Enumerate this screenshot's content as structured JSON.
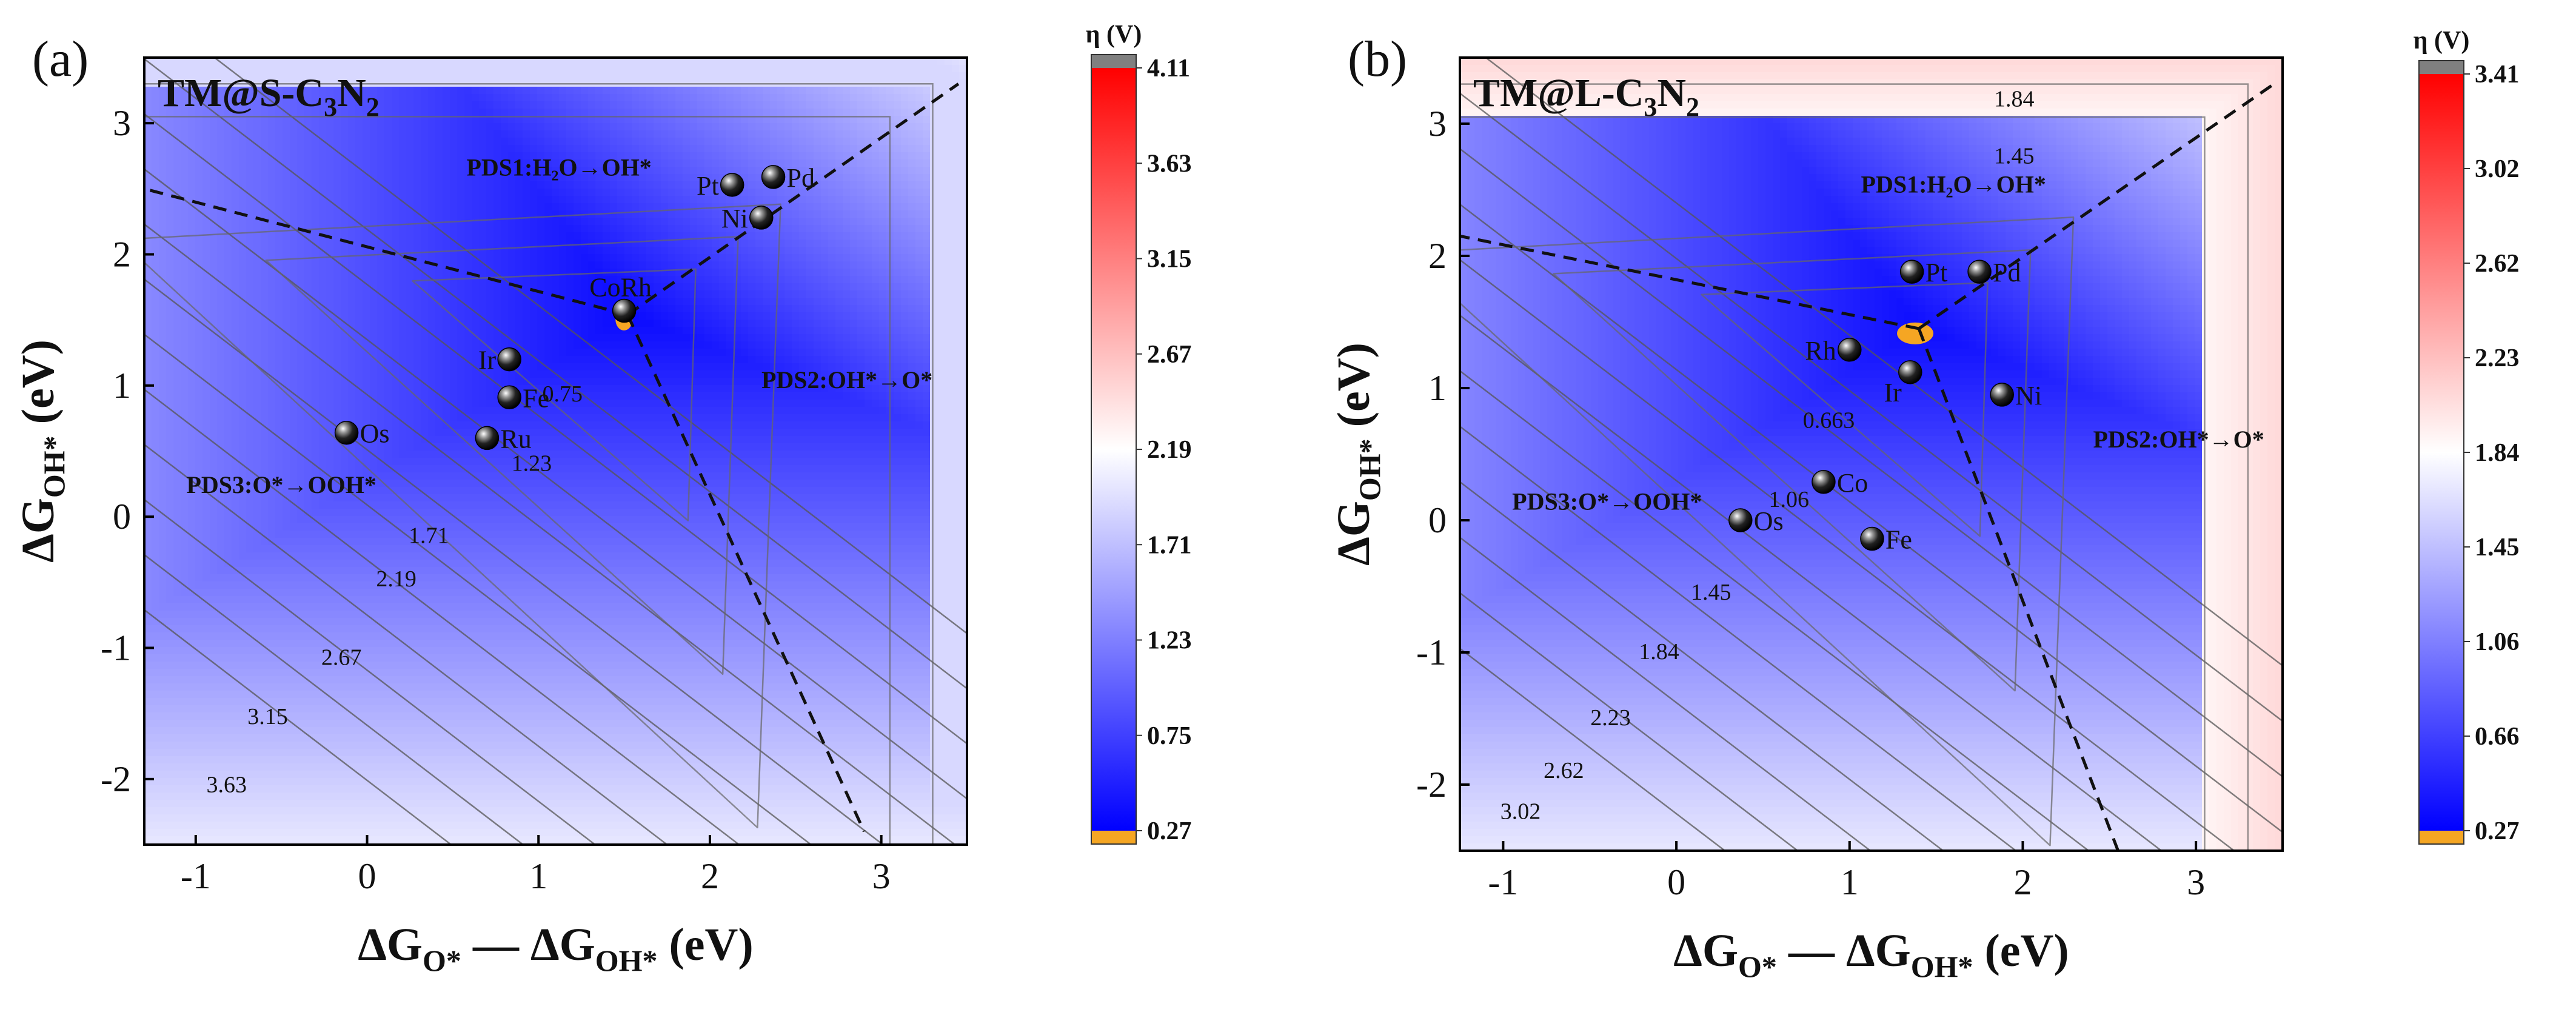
{
  "chart_data": [
    {
      "type": "contour",
      "panel_label": "(a)",
      "title_main": "TM@S-C",
      "title_sub1": "3",
      "title_mid": "N",
      "title_sub2": "2",
      "xlabel": {
        "a": "ΔG",
        "a_sub": "O*",
        "b": " — ΔG",
        "b_sub": "OH*",
        "c": " (eV)"
      },
      "ylabel": {
        "a": "ΔG",
        "a_sub": "OH*",
        "c": " (eV)"
      },
      "xlim": [
        -1.3,
        3.5
      ],
      "ylim": [
        -2.5,
        3.5
      ],
      "xticks": [
        -1,
        0,
        1,
        2,
        3
      ],
      "yticks": [
        -2,
        -1,
        0,
        1,
        2,
        3
      ],
      "apex": [
        1.52,
        1.54
      ],
      "boundary_ends": {
        "left": [
          -1.3,
          2.5
        ],
        "right": [
          3.45,
          3.3
        ],
        "bottom": [
          2.9,
          -2.4
        ]
      },
      "contour_levels": [
        0.75,
        1.23,
        1.71,
        2.19,
        2.67,
        3.15,
        3.63
      ],
      "contour_labels": [
        {
          "text": "0.75",
          "x": 1.14,
          "y": 0.88
        },
        {
          "text": "1.23",
          "x": 0.96,
          "y": 0.35
        },
        {
          "text": "1.71",
          "x": 0.36,
          "y": -0.2
        },
        {
          "text": "2.19",
          "x": 0.17,
          "y": -0.53
        },
        {
          "text": "2.67",
          "x": -0.15,
          "y": -1.13
        },
        {
          "text": "3.15",
          "x": -0.58,
          "y": -1.58
        },
        {
          "text": "3.63",
          "x": -0.82,
          "y": -2.1
        }
      ],
      "annotations": [
        {
          "text": "PDS1:H₂O→OH*",
          "x": 1.12,
          "y": 2.6
        },
        {
          "text": "PDS2:OH*→O*",
          "x": 2.8,
          "y": 0.98
        },
        {
          "text": "PDS3:O*→OOH*",
          "x": -0.5,
          "y": 0.18
        }
      ],
      "points": [
        {
          "label": "Pt",
          "x": 2.13,
          "y": 2.53,
          "label_side": "left"
        },
        {
          "label": "Pd",
          "x": 2.37,
          "y": 2.59,
          "label_side": "right"
        },
        {
          "label": "Ni",
          "x": 2.3,
          "y": 2.28,
          "label_side": "left"
        },
        {
          "label": "CoRh",
          "x": 1.5,
          "y": 1.57,
          "label_side": "top"
        },
        {
          "label": "Ir",
          "x": 0.83,
          "y": 1.2,
          "label_side": "left"
        },
        {
          "label": "Fe",
          "x": 0.83,
          "y": 0.91,
          "label_side": "right"
        },
        {
          "label": "Ru",
          "x": 0.7,
          "y": 0.6,
          "label_side": "right"
        },
        {
          "label": "Os",
          "x": -0.12,
          "y": 0.64,
          "label_side": "right"
        }
      ],
      "colorbar": {
        "title": "η (V)",
        "ticks": [
          4.11,
          3.63,
          3.15,
          2.67,
          2.19,
          1.71,
          1.23,
          0.75,
          0.27
        ]
      }
    },
    {
      "type": "contour",
      "panel_label": "(b)",
      "title_main": "TM@L-C",
      "title_sub1": "3",
      "title_mid": "N",
      "title_sub2": "2",
      "xlabel": {
        "a": "ΔG",
        "a_sub": "O*",
        "b": " — ΔG",
        "b_sub": "OH*",
        "c": " (eV)"
      },
      "ylabel": {
        "a": "ΔG",
        "a_sub": "OH*",
        "c": " (eV)"
      },
      "xlim": [
        -1.25,
        3.5
      ],
      "ylim": [
        -2.5,
        3.5
      ],
      "xticks": [
        -1,
        0,
        1,
        2,
        3
      ],
      "yticks": [
        -2,
        -1,
        0,
        1,
        2,
        3
      ],
      "apex": [
        1.4,
        1.45
      ],
      "boundary_ends": {
        "left": [
          -1.25,
          2.15
        ],
        "right": [
          3.45,
          3.3
        ],
        "bottom": [
          2.55,
          -2.5
        ]
      },
      "contour_levels": [
        0.663,
        1.06,
        1.45,
        1.84,
        2.23,
        2.62,
        3.02
      ],
      "contour_labels": [
        {
          "text": "1.84",
          "x": 1.95,
          "y": 3.13
        },
        {
          "text": "1.45",
          "x": 1.95,
          "y": 2.7
        },
        {
          "text": "0.663",
          "x": 0.88,
          "y": 0.7
        },
        {
          "text": "1.06",
          "x": 0.65,
          "y": 0.1
        },
        {
          "text": "1.45",
          "x": 0.2,
          "y": -0.6
        },
        {
          "text": "1.84",
          "x": -0.1,
          "y": -1.05
        },
        {
          "text": "2.23",
          "x": -0.38,
          "y": -1.55
        },
        {
          "text": "2.62",
          "x": -0.65,
          "y": -1.95
        },
        {
          "text": "3.02",
          "x": -0.9,
          "y": -2.26
        }
      ],
      "annotations": [
        {
          "text": "PDS1:H₂O→OH*",
          "x": 1.6,
          "y": 2.48
        },
        {
          "text": "PDS2:OH*→O*",
          "x": 2.9,
          "y": 0.55
        },
        {
          "text": "PDS3:O*→OOH*",
          "x": -0.4,
          "y": 0.08
        }
      ],
      "points": [
        {
          "label": "Pt",
          "x": 1.36,
          "y": 1.88,
          "label_side": "right"
        },
        {
          "label": "Pd",
          "x": 1.75,
          "y": 1.88,
          "label_side": "right"
        },
        {
          "label": "Rh",
          "x": 1.0,
          "y": 1.29,
          "label_side": "left"
        },
        {
          "label": "Ir",
          "x": 1.35,
          "y": 1.12,
          "label_side": "below-left"
        },
        {
          "label": "Ni",
          "x": 1.88,
          "y": 0.95,
          "label_side": "right"
        },
        {
          "label": "Co",
          "x": 0.85,
          "y": 0.29,
          "label_side": "right"
        },
        {
          "label": "Os",
          "x": 0.37,
          "y": 0.0,
          "label_side": "right"
        },
        {
          "label": "Fe",
          "x": 1.13,
          "y": -0.14,
          "label_side": "right"
        }
      ],
      "colorbar": {
        "title": "η (V)",
        "ticks": [
          3.41,
          3.02,
          2.62,
          2.23,
          1.84,
          1.45,
          1.06,
          0.66,
          0.27
        ]
      }
    }
  ]
}
